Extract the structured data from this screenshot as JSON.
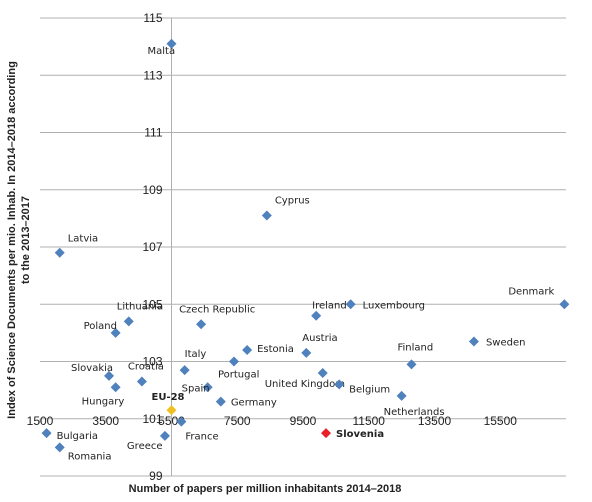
{
  "chart_data": {
    "type": "scatter",
    "title": "",
    "xlabel": "Number of papers per million inhabitants 2014–2018",
    "ylabel_lines": [
      "Index of Science Documents per mio. Inhab. In 2014–2018 according",
      "to the 2013–2017"
    ],
    "xlim": [
      1500,
      17500
    ],
    "ylim": [
      99,
      115
    ],
    "x_ticks": [
      "1500",
      "3500",
      "5500",
      "7500",
      "9500",
      "11500",
      "13500",
      "15500"
    ],
    "y_ticks": [
      "99",
      "101",
      "103",
      "105",
      "107",
      "109",
      "111",
      "113",
      "115"
    ],
    "grid": "horizontal",
    "legend": "none",
    "colors": {
      "default": "#4f81bd",
      "highlight_eu": "#f0c020",
      "highlight_si": "#e8202a"
    },
    "points": [
      {
        "name": "Malta",
        "x": 5500,
        "y": 114.1
      },
      {
        "name": "Cyprus",
        "x": 8400,
        "y": 108.1
      },
      {
        "name": "Latvia",
        "x": 2100,
        "y": 106.8
      },
      {
        "name": "Denmark",
        "x": 17450,
        "y": 105.0
      },
      {
        "name": "Luxembourg",
        "x": 10950,
        "y": 105.0
      },
      {
        "name": "Ireland",
        "x": 9900,
        "y": 104.6
      },
      {
        "name": "Lithuania",
        "x": 4200,
        "y": 104.4
      },
      {
        "name": "Czech Republic",
        "x": 6400,
        "y": 104.3
      },
      {
        "name": "Poland",
        "x": 3800,
        "y": 104.0
      },
      {
        "name": "Sweden",
        "x": 14700,
        "y": 103.7
      },
      {
        "name": "Estonia",
        "x": 7800,
        "y": 103.4
      },
      {
        "name": "Austria",
        "x": 9600,
        "y": 103.3
      },
      {
        "name": "Portugal",
        "x": 7400,
        "y": 103.0
      },
      {
        "name": "Finland",
        "x": 12800,
        "y": 102.9
      },
      {
        "name": "Italy",
        "x": 5900,
        "y": 102.7
      },
      {
        "name": "Slovakia",
        "x": 3600,
        "y": 102.5
      },
      {
        "name": "Croatia",
        "x": 4600,
        "y": 102.3
      },
      {
        "name": "United Kingdom",
        "x": 10100,
        "y": 102.6
      },
      {
        "name": "Belgium",
        "x": 10600,
        "y": 102.2
      },
      {
        "name": "Hungary",
        "x": 3800,
        "y": 102.1
      },
      {
        "name": "Spain",
        "x": 6600,
        "y": 102.1
      },
      {
        "name": "Netherlands",
        "x": 12500,
        "y": 101.8
      },
      {
        "name": "Germany",
        "x": 7000,
        "y": 101.6
      },
      {
        "name": "EU-28",
        "x": 5500,
        "y": 101.3,
        "highlight": "eu"
      },
      {
        "name": "France",
        "x": 5800,
        "y": 100.9
      },
      {
        "name": "Bulgaria",
        "x": 1700,
        "y": 100.5
      },
      {
        "name": "Greece",
        "x": 5300,
        "y": 100.4
      },
      {
        "name": "Romania",
        "x": 2100,
        "y": 100.0
      },
      {
        "name": "Slovenia",
        "x": 10200,
        "y": 100.5,
        "highlight": "si"
      }
    ]
  }
}
